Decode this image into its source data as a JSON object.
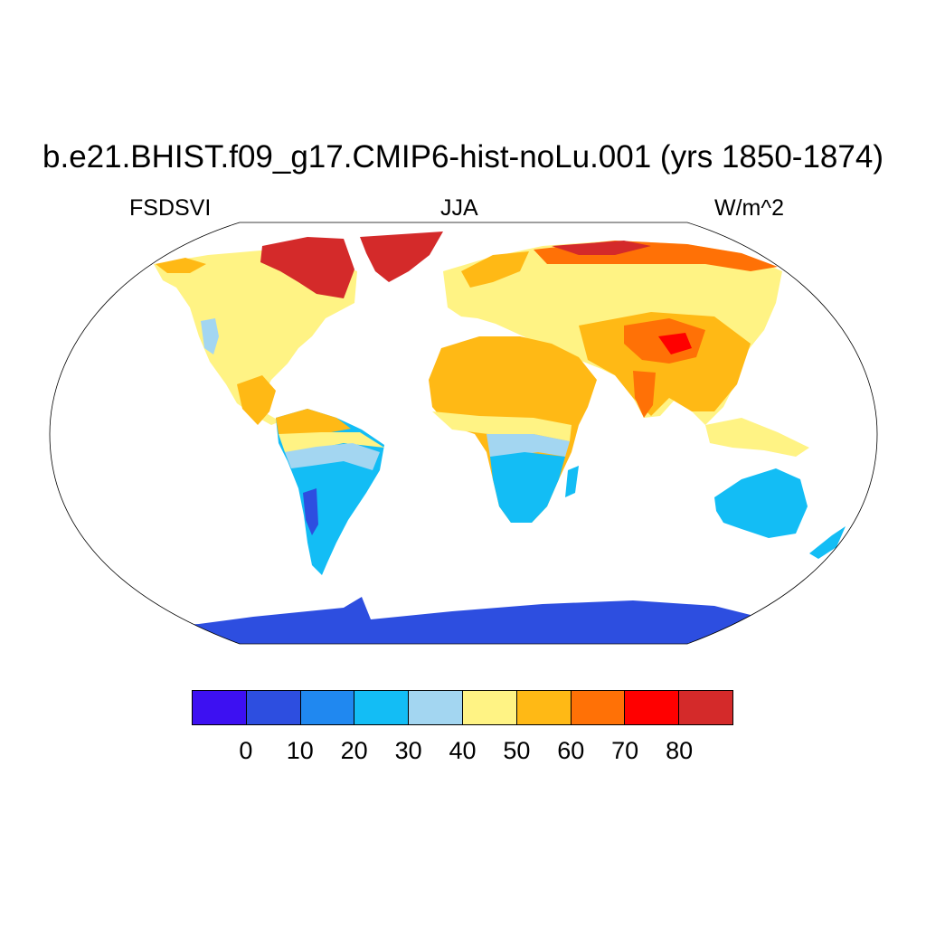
{
  "title": "b.e21.BHIST.f09_g17.CMIP6-hist-noLu.001 (yrs 1850-1874)",
  "left_label": "FSDSVI",
  "center_label": "JJA",
  "right_label": "W/m^2",
  "colorbar": {
    "colors": [
      "#3d10f2",
      "#2d4ee0",
      "#2088f0",
      "#13bdf5",
      "#a3d6f1",
      "#fff384",
      "#ffb915",
      "#ff7106",
      "#ff0000",
      "#d42a2a"
    ],
    "ticks": [
      "0",
      "10",
      "20",
      "30",
      "40",
      "50",
      "60",
      "70",
      "80"
    ]
  },
  "colors": {
    "ocean": "#ffffff",
    "frame": "#000000"
  }
}
